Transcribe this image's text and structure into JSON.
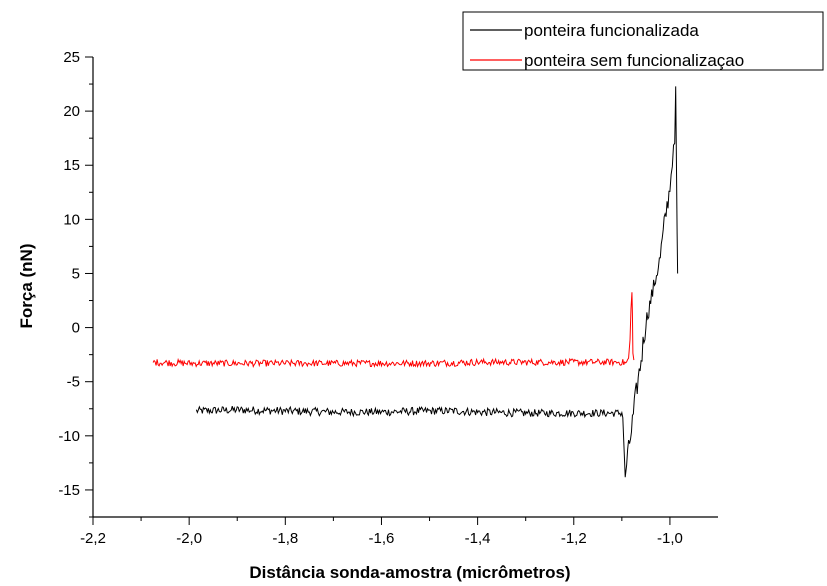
{
  "chart_data": {
    "type": "line",
    "title": "",
    "xlabel": "Distância sonda-amostra (micrômetros)",
    "ylabel": "Força (nN)",
    "xlim": [
      -2.2,
      -0.9
    ],
    "ylim": [
      -17.5,
      25
    ],
    "x_ticks": [
      -2.2,
      -2.0,
      -1.8,
      -1.6,
      -1.4,
      -1.2,
      -1.0
    ],
    "x_tick_labels": [
      "-2,2",
      "-2,0",
      "-1,8",
      "-1,6",
      "-1,4",
      "-1,2",
      "-1,0"
    ],
    "y_ticks": [
      -15,
      -10,
      -5,
      0,
      5,
      10,
      15,
      20,
      25
    ],
    "y_tick_labels": [
      "-15",
      "-10",
      "-5",
      "0",
      "5",
      "10",
      "15",
      "20",
      "25"
    ],
    "grid": false,
    "legend_position": "top-right",
    "series": [
      {
        "name": "ponteira funcionalizada",
        "color": "#000000",
        "noise": 0.35,
        "points": [
          [
            -1.985,
            -7.7
          ],
          [
            -1.9,
            -7.6
          ],
          [
            -1.8,
            -7.7
          ],
          [
            -1.7,
            -7.8
          ],
          [
            -1.6,
            -7.8
          ],
          [
            -1.5,
            -7.7
          ],
          [
            -1.45,
            -7.7
          ],
          [
            -1.4,
            -7.8
          ],
          [
            -1.3,
            -7.9
          ],
          [
            -1.2,
            -7.9
          ],
          [
            -1.1,
            -7.9
          ],
          [
            -1.098,
            -8.0
          ],
          [
            -1.096,
            -10.5
          ],
          [
            -1.094,
            -13.0
          ],
          [
            -1.093,
            -13.8
          ],
          [
            -1.09,
            -12.5
          ],
          [
            -1.08,
            -9.5
          ],
          [
            -1.07,
            -6.0
          ],
          [
            -1.06,
            -3.0
          ],
          [
            -1.05,
            0.5
          ],
          [
            -1.04,
            2.5
          ],
          [
            -1.03,
            4.5
          ],
          [
            -1.02,
            6.5
          ],
          [
            -1.01,
            10.0
          ],
          [
            -1.0,
            13.0
          ],
          [
            -0.995,
            15.5
          ],
          [
            -0.99,
            17.0
          ],
          [
            -0.988,
            20.5
          ],
          [
            -0.985,
            8.0
          ],
          [
            -0.984,
            5.0
          ]
        ]
      },
      {
        "name": "ponteira sem funcionalizaçao",
        "color": "#ff0000",
        "noise": 0.3,
        "points": [
          [
            -2.075,
            -3.2
          ],
          [
            -2.0,
            -3.3
          ],
          [
            -1.9,
            -3.3
          ],
          [
            -1.8,
            -3.3
          ],
          [
            -1.7,
            -3.3
          ],
          [
            -1.6,
            -3.3
          ],
          [
            -1.5,
            -3.3
          ],
          [
            -1.4,
            -3.2
          ],
          [
            -1.3,
            -3.2
          ],
          [
            -1.2,
            -3.2
          ],
          [
            -1.1,
            -3.2
          ],
          [
            -1.09,
            -3.3
          ],
          [
            -1.086,
            -2.8
          ],
          [
            -1.083,
            -1.5
          ],
          [
            -1.081,
            1.5
          ],
          [
            -1.079,
            4.0
          ],
          [
            -1.078,
            1.0
          ],
          [
            -1.077,
            -2.5
          ],
          [
            -1.075,
            -3.0
          ]
        ]
      }
    ]
  }
}
